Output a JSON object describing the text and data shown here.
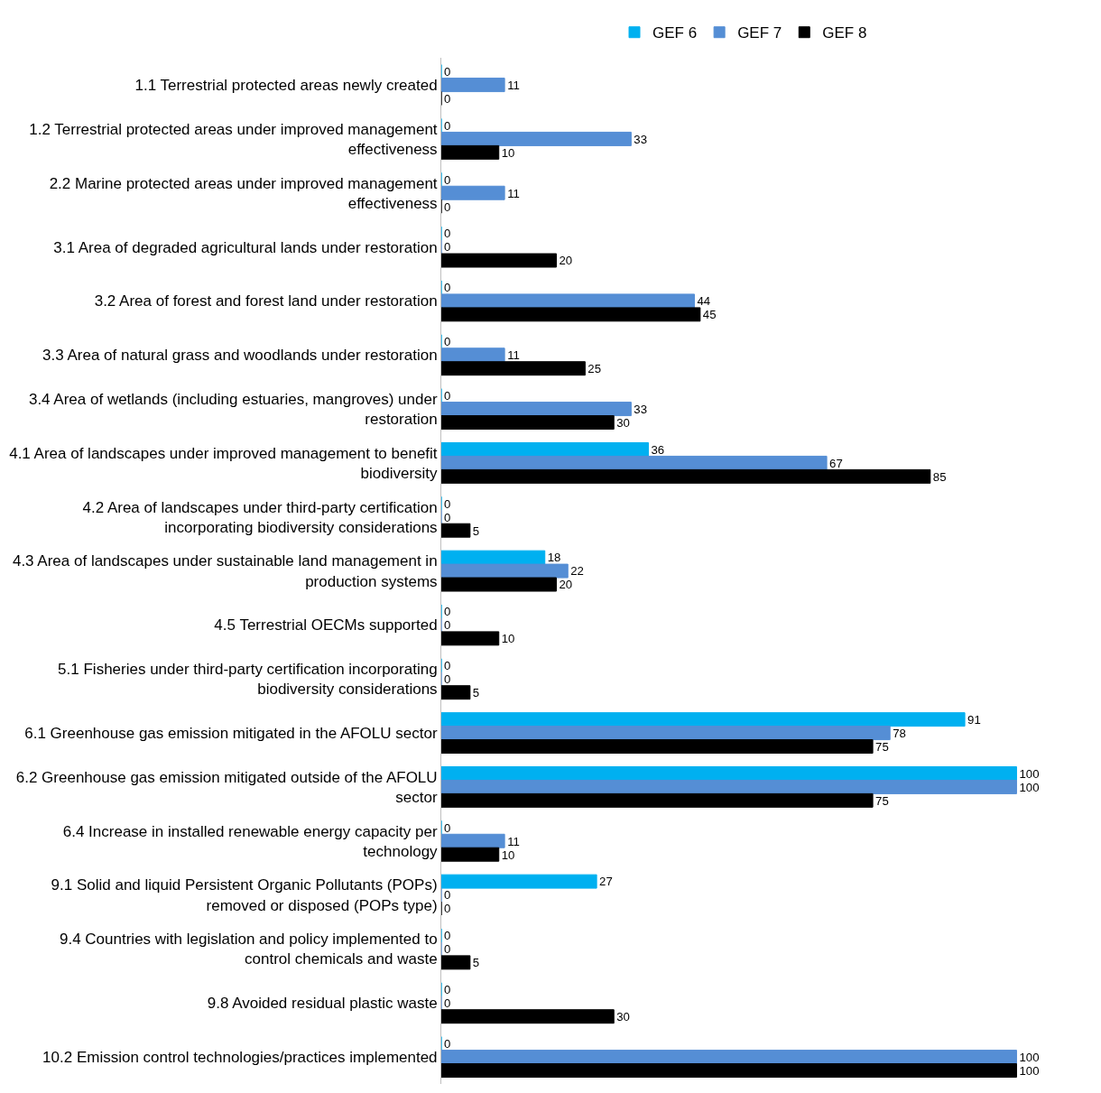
{
  "chart_data": {
    "type": "bar",
    "orientation": "horizontal",
    "data_labels": true,
    "legend": "top",
    "categories": [
      "1.1 Terrestrial protected areas newly created",
      "1.2 Terrestrial protected areas under improved management effectiveness",
      "2.2 Marine protected areas under improved management effectiveness",
      "3.1 Area of degraded agricultural lands under restoration",
      "3.2 Area of forest and forest land under restoration",
      "3.3 Area of natural grass and woodlands under restoration",
      "3.4 Area of wetlands (including estuaries, mangroves) under restoration",
      "4.1 Area of landscapes under improved management to benefit biodiversity",
      "4.2 Area of landscapes under third-party certification incorporating biodiversity considerations",
      "4.3 Area of landscapes under sustainable land management in production systems",
      "4.5 Terrestrial OECMs supported",
      "5.1 Fisheries under third-party certification incorporating biodiversity considerations",
      "6.1 Greenhouse gas emission mitigated in the AFOLU sector",
      "6.2 Greenhouse gas emission mitigated outside of the AFOLU sector",
      "6.4 Increase in installed renewable energy capacity per technology",
      "9.1 Solid and liquid Persistent Organic Pollutants (POPs) removed or disposed (POPs type)",
      "9.4 Countries with legislation and policy implemented to control chemicals and waste",
      "9.8 Avoided residual plastic waste",
      "10.2 Emission control technologies/practices implemented"
    ],
    "series": [
      {
        "name": "GEF 6",
        "color": "#00b0f0",
        "values": [
          0,
          0,
          0,
          0,
          0,
          0,
          0,
          36,
          0,
          18,
          0,
          0,
          91,
          100,
          0,
          27,
          0,
          0,
          0
        ]
      },
      {
        "name": "GEF 7",
        "color": "#558ed5",
        "values": [
          11,
          33,
          11,
          0,
          44,
          11,
          33,
          67,
          0,
          22,
          0,
          0,
          78,
          100,
          11,
          0,
          0,
          0,
          100
        ]
      },
      {
        "name": "GEF 8",
        "color": "#000000",
        "values": [
          0,
          10,
          0,
          20,
          45,
          25,
          30,
          85,
          5,
          20,
          10,
          5,
          75,
          75,
          10,
          0,
          5,
          30,
          100
        ]
      }
    ]
  }
}
